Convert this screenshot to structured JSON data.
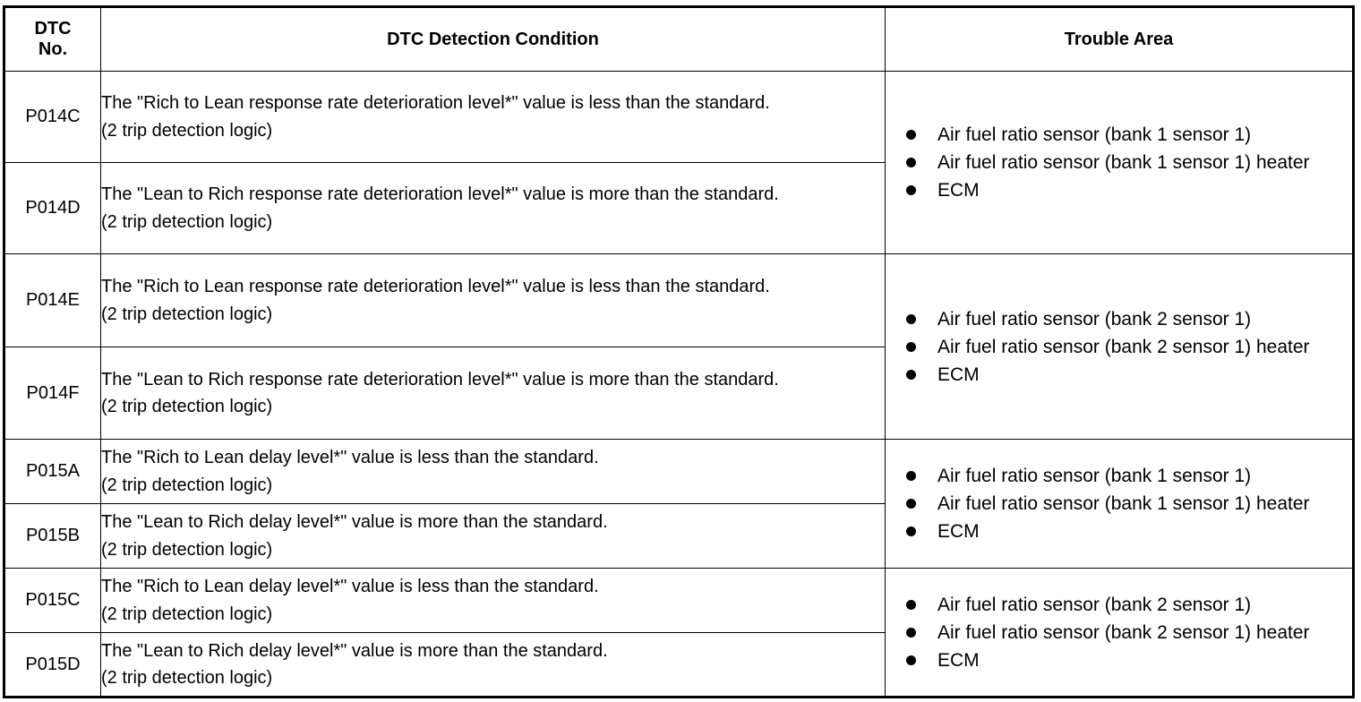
{
  "header": {
    "dtc_no": "DTC No.",
    "condition": "DTC Detection Condition",
    "trouble_area": "Trouble Area"
  },
  "rows": [
    {
      "code": "P014C",
      "condition": "The \"Rich to Lean response rate deterioration level*\" value is less than the standard.",
      "note": "(2 trip detection logic)"
    },
    {
      "code": "P014D",
      "condition": "The \"Lean to Rich response rate deterioration level*\" value is more than the standard.",
      "note": "(2 trip detection logic)"
    },
    {
      "code": "P014E",
      "condition": "The \"Rich to Lean response rate deterioration level*\" value is less than the standard.",
      "note": "(2 trip detection logic)"
    },
    {
      "code": "P014F",
      "condition": "The \"Lean to Rich response rate deterioration level*\" value is more than the standard.",
      "note": "(2 trip detection logic)"
    },
    {
      "code": "P015A",
      "condition": "The \"Rich to Lean delay level*\" value is less than the standard.",
      "note": "(2 trip detection logic)"
    },
    {
      "code": "P015B",
      "condition": "The \"Lean to Rich delay level*\" value is more than the standard.",
      "note": "(2 trip detection logic)"
    },
    {
      "code": "P015C",
      "condition": "The \"Rich to Lean delay level*\" value is less than the standard.",
      "note": "(2 trip detection logic)"
    },
    {
      "code": "P015D",
      "condition": "The \"Lean to Rich delay level*\" value is more than the standard.",
      "note": "(2 trip detection logic)"
    }
  ],
  "areas": [
    {
      "items": [
        "Air fuel ratio sensor (bank 1 sensor 1)",
        "Air fuel ratio sensor (bank 1 sensor 1) heater",
        "ECM"
      ]
    },
    {
      "items": [
        "Air fuel ratio sensor (bank 2 sensor 1)",
        "Air fuel ratio sensor (bank 2 sensor 1) heater",
        "ECM"
      ]
    },
    {
      "items": [
        "Air fuel ratio sensor (bank 1 sensor 1)",
        "Air fuel ratio sensor (bank 1 sensor 1) heater",
        "ECM"
      ]
    },
    {
      "items": [
        "Air fuel ratio sensor (bank 2 sensor 1)",
        "Air fuel ratio sensor (bank 2 sensor 1) heater",
        "ECM"
      ]
    }
  ]
}
